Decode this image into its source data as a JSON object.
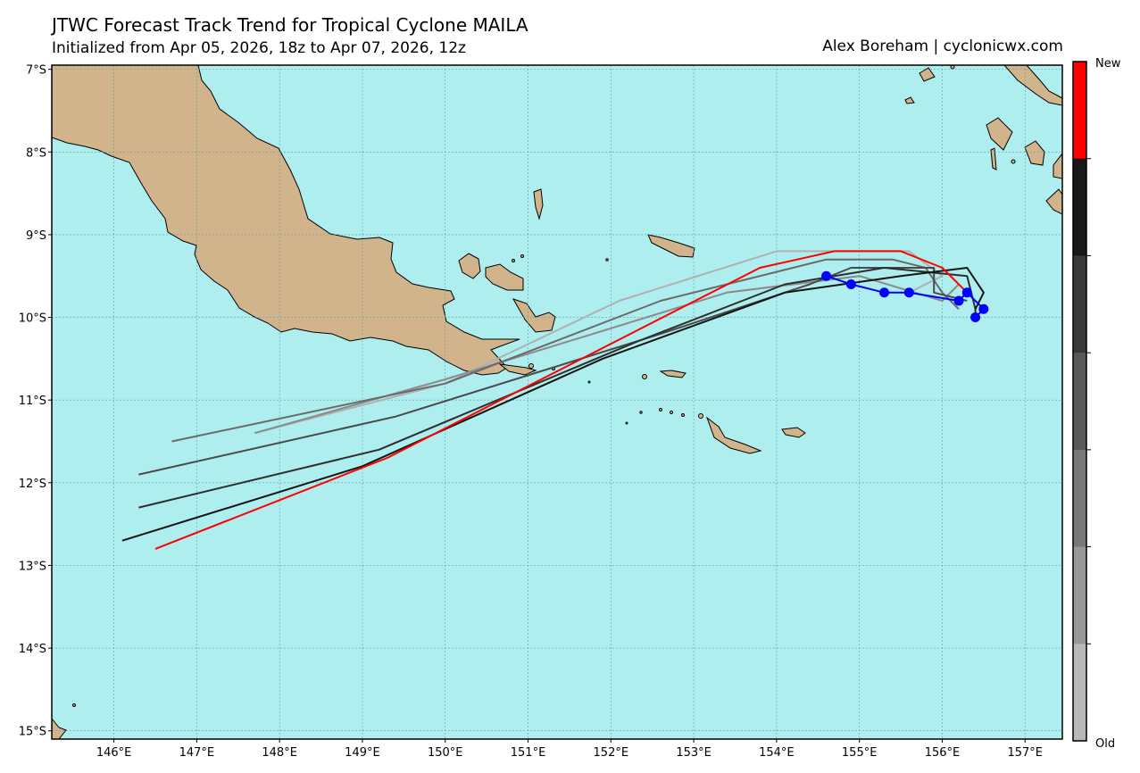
{
  "header": {
    "title": "JTWC Forecast Track Trend for Tropical Cyclone MAILA",
    "subtitle": "Initialized from Apr 05, 2026, 18z to Apr 07, 2026, 12z",
    "credit": "Alex Boreham | cyclonicwx.com"
  },
  "map": {
    "lon_range": [
      145.25,
      157.45
    ],
    "lat_range": [
      -15.1,
      -6.95
    ],
    "ocean_color": "#afeeee",
    "land_color": "#d2b48c",
    "x_ticks": [
      146,
      147,
      148,
      149,
      150,
      151,
      152,
      153,
      154,
      155,
      156,
      157
    ],
    "y_ticks": [
      -7,
      -8,
      -9,
      -10,
      -11,
      -12,
      -13,
      -14,
      -15
    ],
    "x_tick_labels": [
      "146°E",
      "147°E",
      "148°E",
      "149°E",
      "150°E",
      "151°E",
      "152°E",
      "153°E",
      "154°E",
      "155°E",
      "156°E",
      "157°E"
    ],
    "y_tick_labels": [
      "7°S",
      "8°S",
      "9°S",
      "10°S",
      "11°S",
      "12°S",
      "13°S",
      "14°S",
      "15°S"
    ],
    "gridlines": true
  },
  "colorbar": {
    "top_label": "New",
    "bottom_label": "Old",
    "colors": [
      "#ff0000",
      "#181818",
      "#383838",
      "#585858",
      "#787878",
      "#989898",
      "#b8b8b8"
    ]
  },
  "forecast_tracks": [
    {
      "color": "#b0b0b0",
      "points": [
        [
          147.7,
          -11.4
        ],
        [
          150.0,
          -10.8
        ],
        [
          152.1,
          -9.8
        ],
        [
          154.0,
          -9.2
        ],
        [
          155.6,
          -9.2
        ],
        [
          156.0,
          -9.5
        ],
        [
          155.6,
          -9.7
        ]
      ]
    },
    {
      "color": "#8a8a8a",
      "points": [
        [
          147.7,
          -11.4
        ],
        [
          150.0,
          -10.75
        ],
        [
          153.4,
          -9.7
        ],
        [
          155.0,
          -9.5
        ],
        [
          156.0,
          -9.8
        ],
        [
          156.2,
          -9.6
        ]
      ]
    },
    {
      "color": "#6a6a6a",
      "points": [
        [
          146.7,
          -11.5
        ],
        [
          150.0,
          -10.8
        ],
        [
          152.6,
          -9.8
        ],
        [
          154.6,
          -9.3
        ],
        [
          155.4,
          -9.3
        ],
        [
          155.8,
          -9.4
        ],
        [
          156.0,
          -9.7
        ],
        [
          156.2,
          -9.9
        ]
      ]
    },
    {
      "color": "#4a4a4a",
      "points": [
        [
          146.3,
          -11.9
        ],
        [
          149.4,
          -11.2
        ],
        [
          152.6,
          -10.2
        ],
        [
          154.4,
          -9.6
        ],
        [
          154.9,
          -9.4
        ],
        [
          155.9,
          -9.4
        ],
        [
          155.9,
          -9.7
        ],
        [
          156.3,
          -9.8
        ]
      ]
    },
    {
      "color": "#2e2e2e",
      "points": [
        [
          146.3,
          -12.3
        ],
        [
          149.2,
          -11.6
        ],
        [
          152.3,
          -10.3
        ],
        [
          154.1,
          -9.6
        ],
        [
          155.3,
          -9.4
        ],
        [
          156.3,
          -9.5
        ],
        [
          156.4,
          -9.9
        ],
        [
          156.4,
          -10.0
        ]
      ]
    },
    {
      "color": "#141414",
      "points": [
        [
          146.1,
          -12.7
        ],
        [
          149.0,
          -11.8
        ],
        [
          151.9,
          -10.5
        ],
        [
          154.1,
          -9.7
        ],
        [
          155.5,
          -9.5
        ],
        [
          156.3,
          -9.4
        ],
        [
          156.5,
          -9.7
        ],
        [
          156.4,
          -9.9
        ]
      ]
    },
    {
      "color": "#ff0000",
      "points": [
        [
          146.5,
          -12.8
        ],
        [
          149.3,
          -11.7
        ],
        [
          153.8,
          -9.4
        ],
        [
          154.7,
          -9.2
        ],
        [
          155.5,
          -9.2
        ],
        [
          156.0,
          -9.4
        ],
        [
          156.3,
          -9.7
        ]
      ]
    }
  ],
  "best_track": {
    "color": "#0000ff",
    "points": [
      [
        154.6,
        -9.5
      ],
      [
        154.9,
        -9.6
      ],
      [
        155.3,
        -9.7
      ],
      [
        155.6,
        -9.7
      ],
      [
        156.2,
        -9.8
      ],
      [
        156.3,
        -9.7
      ],
      [
        156.5,
        -9.9
      ],
      [
        156.4,
        -10.0
      ]
    ]
  }
}
